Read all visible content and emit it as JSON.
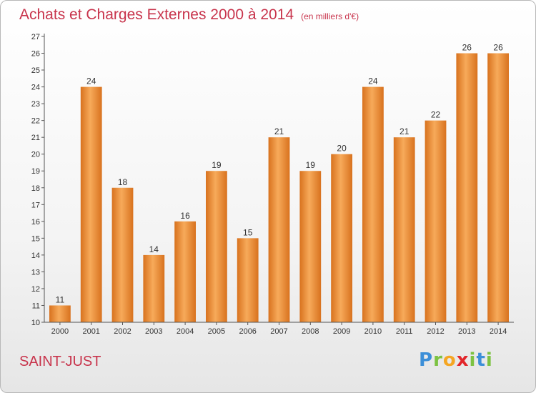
{
  "header": {
    "title": "Achats et Charges Externes 2000 à 2014",
    "subtitle": "(en milliers d'€)"
  },
  "footer": {
    "location": "SAINT-JUST",
    "logo": [
      "P",
      "r",
      "o",
      "x",
      "i",
      "t",
      "i"
    ]
  },
  "colors": {
    "bar_light": "#f7aa5a",
    "bar_dark": "#d8721e",
    "title": "#c8344c",
    "logo": [
      "#3c8fd8",
      "#7cc242",
      "#f5a623",
      "#e2262b",
      "#7cc242",
      "#3c8fd8",
      "#7cc242"
    ]
  },
  "chart_data": {
    "type": "bar",
    "title": "Achats et Charges Externes 2000 à 2014",
    "subtitle": "(en milliers d'€)",
    "categories": [
      "2000",
      "2001",
      "2002",
      "2003",
      "2004",
      "2005",
      "2006",
      "2007",
      "2008",
      "2009",
      "2010",
      "2011",
      "2012",
      "2013",
      "2014"
    ],
    "values": [
      11,
      24,
      18,
      14,
      16,
      19,
      15,
      21,
      19,
      20,
      24,
      21,
      22,
      26,
      26
    ],
    "ylim": [
      10,
      27
    ],
    "yticks": [
      10,
      11,
      12,
      13,
      14,
      15,
      16,
      17,
      18,
      19,
      20,
      21,
      22,
      23,
      24,
      25,
      26,
      27
    ],
    "grid": false,
    "legend": "none"
  }
}
